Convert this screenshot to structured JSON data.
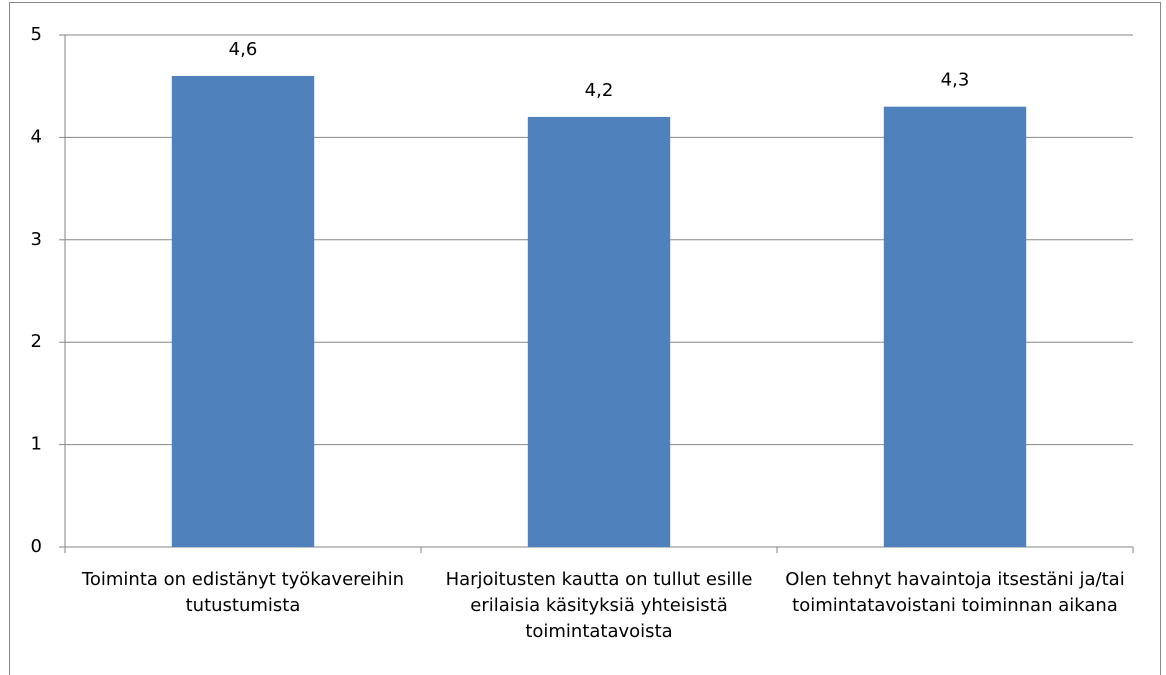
{
  "chart_data": {
    "type": "bar",
    "categories": [
      "Toiminta on edistänyt työkavereihin tutustumista",
      "Harjoitusten kautta on tullut esille erilaisia käsityksiä yhteisistä toimintatavoista",
      "Olen tehnyt havaintoja itsestäni ja/tai toimintatavoistani toiminnan aikana"
    ],
    "values": [
      4.6,
      4.2,
      4.3
    ],
    "value_labels": [
      "4,6",
      "4,2",
      "4,3"
    ],
    "color": "#4f81bd",
    "ylim": [
      0,
      5
    ],
    "yticks": [
      0,
      1,
      2,
      3,
      4,
      5
    ],
    "grid": true
  }
}
